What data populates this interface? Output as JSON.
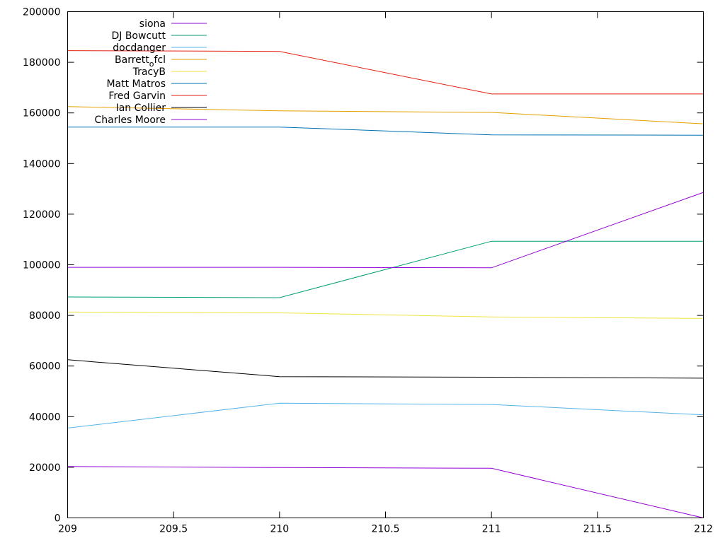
{
  "chart_data": {
    "type": "line",
    "title": "",
    "xlabel": "",
    "ylabel": "",
    "xlim": [
      209,
      212
    ],
    "ylim": [
      0,
      200000
    ],
    "x_ticks": [
      209,
      209.5,
      210,
      210.5,
      211,
      211.5,
      212
    ],
    "x_tick_labels": [
      "209",
      "209.5",
      "210",
      "210.5",
      "211",
      "211.5",
      "212"
    ],
    "y_ticks": [
      0,
      20000,
      40000,
      60000,
      80000,
      100000,
      120000,
      140000,
      160000,
      180000,
      200000
    ],
    "y_tick_labels": [
      "0",
      "20000",
      "40000",
      "60000",
      "80000",
      "100000",
      "120000",
      "140000",
      "160000",
      "180000",
      "200000"
    ],
    "grid": false,
    "legend_position": "top-left",
    "x": [
      209,
      210,
      211,
      212
    ],
    "series": [
      {
        "name": "siona",
        "color": "#9400d3",
        "values": [
          20300,
          19900,
          19600,
          0
        ]
      },
      {
        "name": "DJ Bowcutt",
        "color": "#009e73",
        "values": [
          87300,
          87000,
          109300,
          109300
        ]
      },
      {
        "name": "docdanger",
        "color": "#56b4e9",
        "values": [
          35500,
          45300,
          44800,
          40700
        ]
      },
      {
        "name": "Barrett_fcl",
        "name_base": "Barrett",
        "name_sub": "o",
        "name_rest": "fcl",
        "color": "#e69f00",
        "values": [
          162500,
          160800,
          160200,
          155700
        ]
      },
      {
        "name": "TracyB",
        "color": "#f0e442",
        "values": [
          81300,
          81000,
          79400,
          78800
        ]
      },
      {
        "name": "Matt Matros",
        "color": "#0072b2",
        "values": [
          154400,
          154400,
          151300,
          151200
        ]
      },
      {
        "name": "Fred Garvin",
        "color": "#e51e10",
        "values": [
          184600,
          184300,
          167500,
          167500
        ]
      },
      {
        "name": "Ian Collier",
        "color": "#000000",
        "values": [
          62500,
          55800,
          55600,
          55200
        ]
      },
      {
        "name": "Charles Moore",
        "color": "#9400d3",
        "values": [
          99000,
          99000,
          98800,
          128600
        ]
      }
    ]
  }
}
